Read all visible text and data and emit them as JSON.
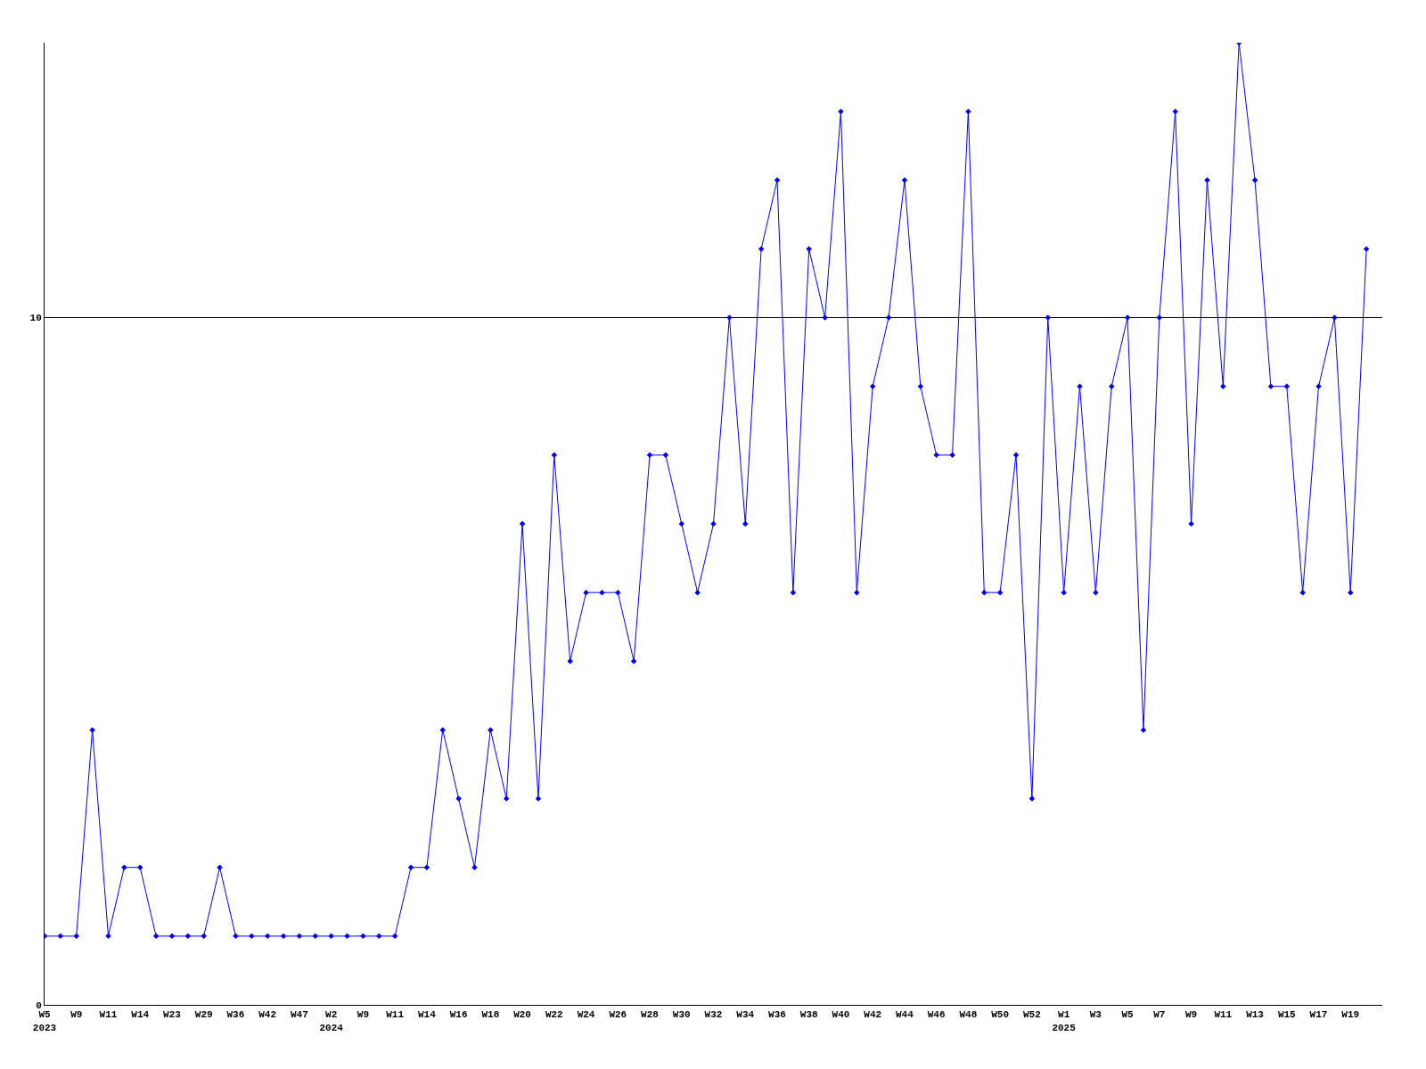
{
  "chart_data": {
    "type": "line",
    "categories": [
      "W5\n2023",
      null,
      "W9",
      null,
      "W11",
      null,
      "W14",
      null,
      "W23",
      null,
      "W29",
      null,
      "W36",
      null,
      "W42",
      null,
      "W47",
      null,
      "W2\n2024",
      null,
      "W9",
      null,
      "W11",
      null,
      "W14",
      null,
      "W16",
      null,
      "W18",
      null,
      "W20",
      null,
      "W22",
      null,
      "W24",
      null,
      "W26",
      null,
      "W28",
      null,
      "W30",
      null,
      "W32",
      null,
      "W34",
      null,
      "W36",
      null,
      "W38",
      null,
      "W40",
      null,
      "W42",
      null,
      "W44",
      null,
      "W46",
      null,
      "W48",
      null,
      "W50",
      null,
      "W52",
      null,
      "W1\n2025",
      null,
      "W3",
      null,
      "W5",
      null,
      "W7",
      null,
      "W9",
      null,
      "W11",
      null,
      "W13",
      null,
      "W15",
      null,
      "W17",
      null,
      "W19",
      null
    ],
    "series": [
      {
        "color": "#0000ff",
        "values": [
          1,
          1,
          1,
          4,
          1,
          2,
          2,
          1,
          1,
          1,
          1,
          2,
          1,
          1,
          1,
          1,
          1,
          1,
          1,
          1,
          1,
          1,
          1,
          2,
          2,
          4,
          3,
          2,
          4,
          3,
          7,
          3,
          8,
          5,
          6,
          6,
          6,
          5,
          8,
          8,
          7,
          6,
          7,
          10,
          7,
          11,
          12,
          6,
          11,
          10,
          13,
          6,
          9,
          10,
          12,
          9,
          8,
          8,
          13,
          6,
          6,
          8,
          3,
          10,
          6,
          9,
          6,
          9,
          10,
          4,
          10,
          13,
          7,
          12,
          9,
          14,
          12,
          9,
          9,
          6,
          9,
          10,
          6,
          11
        ]
      }
    ],
    "ylim": [
      0,
      14
    ],
    "yticks": [
      0,
      10
    ],
    "grid": "y",
    "marker": "diamond",
    "line_style": "solid"
  }
}
